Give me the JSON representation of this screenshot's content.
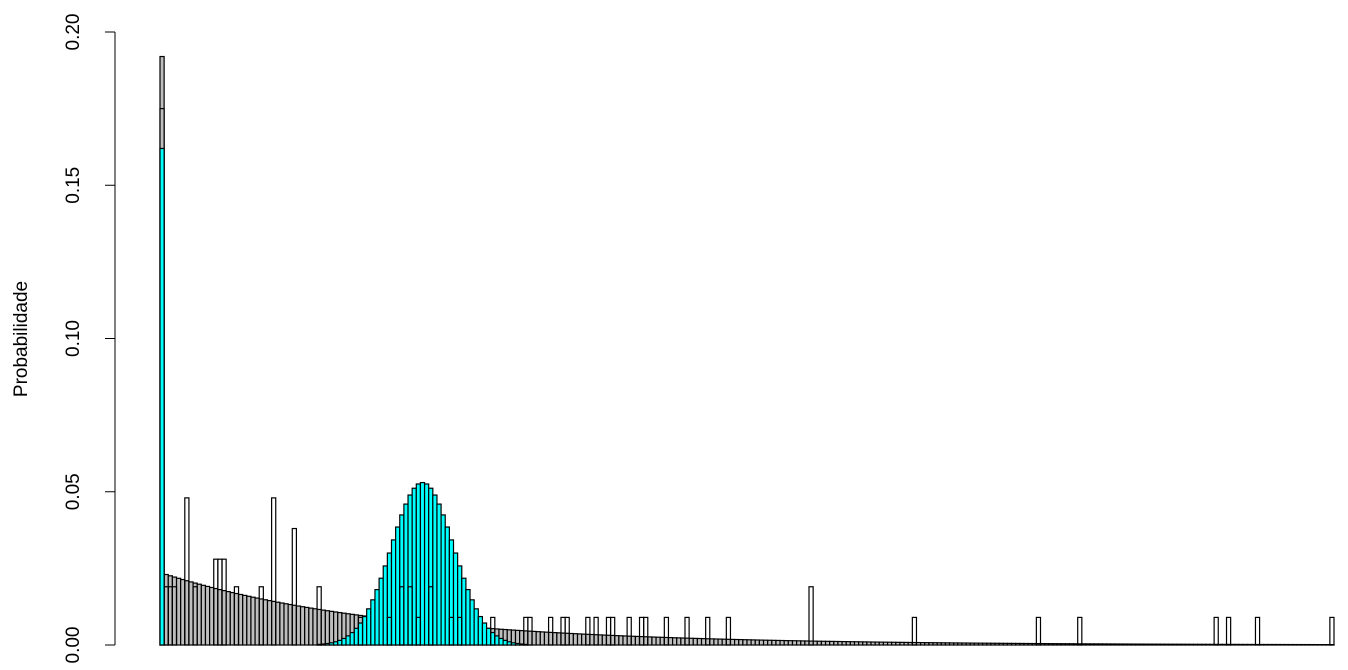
{
  "chart_data": {
    "type": "bar",
    "title": "",
    "xlabel": "",
    "ylabel": "Probabilidade",
    "ylim": [
      0,
      0.2
    ],
    "yticks": [
      "0.00",
      "0.05",
      "0.10",
      "0.15",
      "0.20"
    ],
    "ytick_values": [
      0,
      0.05,
      0.1,
      0.15,
      0.2
    ],
    "xlim": [
      0,
      283
    ],
    "x_axis_shown": false,
    "grid": false,
    "legend": "none",
    "series": [
      {
        "name": "",
        "style": "gray",
        "fill": "#bebebe",
        "spike": {
          "x": 0,
          "value": 0.192
        },
        "decay": {
          "start": 1,
          "end": 283,
          "first_value": 0.023,
          "rate": 0.0185
        }
      },
      {
        "name": "",
        "style": "gray",
        "fill": "#bebebe",
        "spike": {
          "x": 0,
          "value": 0.175
        }
      },
      {
        "name": "",
        "style": "cyan",
        "fill": "#00ffff",
        "spike": {
          "x": 0,
          "value": 0.162
        },
        "normal": {
          "mean": 63,
          "sd": 7.5,
          "peak": 0.053,
          "from": 35,
          "to": 95
        }
      },
      {
        "name": "",
        "style": "outline",
        "fill": "none",
        "bars": [
          [
            1,
            0.019
          ],
          [
            2,
            0.019
          ],
          [
            3,
            0.019
          ],
          [
            6,
            0.048
          ],
          [
            8,
            0.019
          ],
          [
            13,
            0.028
          ],
          [
            14,
            0.028
          ],
          [
            15,
            0.028
          ],
          [
            18,
            0.019
          ],
          [
            24,
            0.019
          ],
          [
            27,
            0.048
          ],
          [
            32,
            0.038
          ],
          [
            38,
            0.019
          ],
          [
            48,
            0.009
          ],
          [
            55,
            0.009
          ],
          [
            58,
            0.019
          ],
          [
            60,
            0.019
          ],
          [
            62,
            0.009
          ],
          [
            65,
            0.019
          ],
          [
            70,
            0.009
          ],
          [
            72,
            0.009
          ],
          [
            80,
            0.009
          ],
          [
            88,
            0.009
          ],
          [
            89,
            0.009
          ],
          [
            94,
            0.009
          ],
          [
            97,
            0.009
          ],
          [
            98,
            0.009
          ],
          [
            103,
            0.009
          ],
          [
            105,
            0.009
          ],
          [
            108,
            0.009
          ],
          [
            109,
            0.009
          ],
          [
            113,
            0.009
          ],
          [
            116,
            0.009
          ],
          [
            117,
            0.009
          ],
          [
            122,
            0.009
          ],
          [
            127,
            0.009
          ],
          [
            132,
            0.009
          ],
          [
            137,
            0.009
          ],
          [
            157,
            0.019
          ],
          [
            182,
            0.009
          ],
          [
            212,
            0.009
          ],
          [
            222,
            0.009
          ],
          [
            255,
            0.009
          ],
          [
            258,
            0.009
          ],
          [
            265,
            0.009
          ],
          [
            283,
            0.009
          ]
        ]
      }
    ]
  }
}
